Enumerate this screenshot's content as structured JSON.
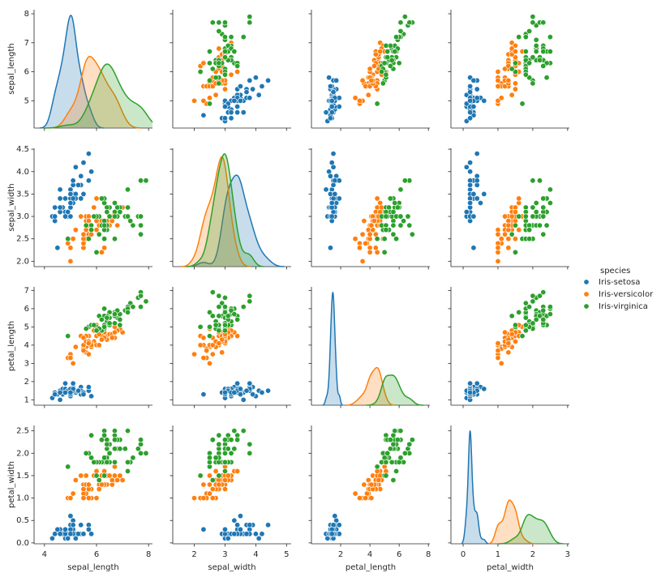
{
  "chart_data": {
    "type": "pairplot",
    "legend_title": "species",
    "variables": [
      {
        "label": "sepal_length",
        "xlim": [
          3.6,
          8.15
        ],
        "xticks": [
          4,
          6,
          8
        ],
        "ylim": [
          4.06,
          8.14
        ],
        "yticks": [
          5,
          6,
          7,
          8
        ]
      },
      {
        "label": "sepal_width",
        "xlim": [
          1.3,
          5.15
        ],
        "xticks": [
          2,
          3,
          4,
          5
        ],
        "ylim": [
          1.88,
          4.52
        ],
        "yticks": [
          {
            "value": 2,
            "label": "2.0"
          },
          2.5,
          {
            "value": 3,
            "label": "3.0"
          },
          3.5,
          {
            "value": 4,
            "label": "4.0"
          },
          4.5
        ]
      },
      {
        "label": "petal_length",
        "xlim": [
          0,
          8.1
        ],
        "xticks": [
          2,
          4,
          6,
          8
        ],
        "ylim": [
          0.705,
          7.195
        ],
        "yticks": [
          1,
          2,
          3,
          4,
          5,
          6,
          7
        ]
      },
      {
        "label": "petal_width",
        "xlim": [
          -0.35,
          3.05
        ],
        "xticks": [
          0,
          1,
          2,
          3
        ],
        "ylim": [
          -0.02,
          2.62
        ],
        "yticks": [
          {
            "value": 0,
            "label": "0.0"
          },
          0.5,
          {
            "value": 1,
            "label": "1.0"
          },
          1.5,
          {
            "value": 2,
            "label": "2.0"
          },
          2.5
        ]
      }
    ],
    "series": [
      {
        "name": "Iris-setosa",
        "color": "#1f77b4",
        "values": [
          [
            5.1,
            3.5,
            1.4,
            0.2
          ],
          [
            4.9,
            3.0,
            1.4,
            0.2
          ],
          [
            4.7,
            3.2,
            1.3,
            0.2
          ],
          [
            4.6,
            3.1,
            1.5,
            0.2
          ],
          [
            5.0,
            3.6,
            1.4,
            0.2
          ],
          [
            5.4,
            3.9,
            1.7,
            0.4
          ],
          [
            4.6,
            3.4,
            1.4,
            0.3
          ],
          [
            5.0,
            3.4,
            1.5,
            0.2
          ],
          [
            4.4,
            2.9,
            1.4,
            0.2
          ],
          [
            4.9,
            3.1,
            1.5,
            0.1
          ],
          [
            5.4,
            3.7,
            1.5,
            0.2
          ],
          [
            4.8,
            3.4,
            1.6,
            0.2
          ],
          [
            4.8,
            3.0,
            1.4,
            0.1
          ],
          [
            4.3,
            3.0,
            1.1,
            0.1
          ],
          [
            5.8,
            4.0,
            1.2,
            0.2
          ],
          [
            5.7,
            4.4,
            1.5,
            0.4
          ],
          [
            5.4,
            3.9,
            1.3,
            0.4
          ],
          [
            5.1,
            3.5,
            1.4,
            0.3
          ],
          [
            5.7,
            3.8,
            1.7,
            0.3
          ],
          [
            5.1,
            3.8,
            1.5,
            0.3
          ],
          [
            5.4,
            3.4,
            1.7,
            0.2
          ],
          [
            5.1,
            3.7,
            1.5,
            0.4
          ],
          [
            4.6,
            3.6,
            1.0,
            0.2
          ],
          [
            5.1,
            3.3,
            1.7,
            0.5
          ],
          [
            4.8,
            3.4,
            1.9,
            0.2
          ],
          [
            5.0,
            3.0,
            1.6,
            0.2
          ],
          [
            5.0,
            3.4,
            1.6,
            0.4
          ],
          [
            5.2,
            3.5,
            1.5,
            0.2
          ],
          [
            5.2,
            3.4,
            1.4,
            0.2
          ],
          [
            4.7,
            3.2,
            1.6,
            0.2
          ],
          [
            4.8,
            3.1,
            1.6,
            0.2
          ],
          [
            5.4,
            3.4,
            1.5,
            0.4
          ],
          [
            5.2,
            4.1,
            1.5,
            0.1
          ],
          [
            5.5,
            4.2,
            1.4,
            0.2
          ],
          [
            4.9,
            3.1,
            1.5,
            0.1
          ],
          [
            5.0,
            3.2,
            1.2,
            0.2
          ],
          [
            5.5,
            3.5,
            1.3,
            0.2
          ],
          [
            4.9,
            3.1,
            1.5,
            0.1
          ],
          [
            4.4,
            3.0,
            1.3,
            0.2
          ],
          [
            5.1,
            3.4,
            1.5,
            0.2
          ],
          [
            5.0,
            3.5,
            1.3,
            0.3
          ],
          [
            4.5,
            2.3,
            1.3,
            0.3
          ],
          [
            4.4,
            3.2,
            1.3,
            0.2
          ],
          [
            5.0,
            3.5,
            1.6,
            0.6
          ],
          [
            5.1,
            3.8,
            1.9,
            0.4
          ],
          [
            4.8,
            3.0,
            1.4,
            0.3
          ],
          [
            5.1,
            3.8,
            1.6,
            0.2
          ],
          [
            4.6,
            3.2,
            1.4,
            0.2
          ],
          [
            5.3,
            3.7,
            1.5,
            0.2
          ],
          [
            5.0,
            3.3,
            1.4,
            0.2
          ]
        ]
      },
      {
        "name": "Iris-versicolor",
        "color": "#ff7f0e",
        "values": [
          [
            7.0,
            3.2,
            4.7,
            1.4
          ],
          [
            6.4,
            3.2,
            4.5,
            1.5
          ],
          [
            6.9,
            3.1,
            4.9,
            1.5
          ],
          [
            5.5,
            2.3,
            4.0,
            1.3
          ],
          [
            6.5,
            2.8,
            4.6,
            1.5
          ],
          [
            5.7,
            2.8,
            4.5,
            1.3
          ],
          [
            6.3,
            3.3,
            4.7,
            1.6
          ],
          [
            4.9,
            2.4,
            3.3,
            1.0
          ],
          [
            6.6,
            2.9,
            4.6,
            1.3
          ],
          [
            5.2,
            2.7,
            3.9,
            1.4
          ],
          [
            5.0,
            2.0,
            3.5,
            1.0
          ],
          [
            5.9,
            3.0,
            4.2,
            1.5
          ],
          [
            6.0,
            2.2,
            4.0,
            1.0
          ],
          [
            6.1,
            2.9,
            4.7,
            1.4
          ],
          [
            5.6,
            2.9,
            3.6,
            1.3
          ],
          [
            6.7,
            3.1,
            4.4,
            1.4
          ],
          [
            5.6,
            3.0,
            4.5,
            1.5
          ],
          [
            5.8,
            2.7,
            4.1,
            1.0
          ],
          [
            6.2,
            2.2,
            4.5,
            1.5
          ],
          [
            5.6,
            2.5,
            3.9,
            1.1
          ],
          [
            5.9,
            3.2,
            4.8,
            1.8
          ],
          [
            6.1,
            2.8,
            4.0,
            1.3
          ],
          [
            6.3,
            2.5,
            4.9,
            1.5
          ],
          [
            6.1,
            2.8,
            4.7,
            1.2
          ],
          [
            6.4,
            2.9,
            4.3,
            1.3
          ],
          [
            6.6,
            3.0,
            4.4,
            1.4
          ],
          [
            6.8,
            2.8,
            4.8,
            1.4
          ],
          [
            6.7,
            3.0,
            5.0,
            1.7
          ],
          [
            6.0,
            2.9,
            4.5,
            1.5
          ],
          [
            5.7,
            2.6,
            3.5,
            1.0
          ],
          [
            5.5,
            2.4,
            3.8,
            1.1
          ],
          [
            5.5,
            2.4,
            3.7,
            1.0
          ],
          [
            5.8,
            2.7,
            3.9,
            1.2
          ],
          [
            6.0,
            2.7,
            5.1,
            1.6
          ],
          [
            5.4,
            3.0,
            4.5,
            1.5
          ],
          [
            6.0,
            3.4,
            4.5,
            1.6
          ],
          [
            6.7,
            3.1,
            4.7,
            1.5
          ],
          [
            6.3,
            2.3,
            4.4,
            1.3
          ],
          [
            5.6,
            3.0,
            4.1,
            1.3
          ],
          [
            5.5,
            2.5,
            4.0,
            1.3
          ],
          [
            5.5,
            2.6,
            4.4,
            1.2
          ],
          [
            6.1,
            3.0,
            4.6,
            1.4
          ],
          [
            5.8,
            2.6,
            4.0,
            1.2
          ],
          [
            5.0,
            2.3,
            3.3,
            1.0
          ],
          [
            5.6,
            2.7,
            4.2,
            1.3
          ],
          [
            5.7,
            3.0,
            4.2,
            1.2
          ],
          [
            5.7,
            2.9,
            4.2,
            1.3
          ],
          [
            6.2,
            2.9,
            4.3,
            1.3
          ],
          [
            5.1,
            2.5,
            3.0,
            1.1
          ],
          [
            5.7,
            2.8,
            4.1,
            1.3
          ]
        ]
      },
      {
        "name": "Iris-virginica",
        "color": "#2ca02c",
        "values": [
          [
            6.3,
            3.3,
            6.0,
            2.5
          ],
          [
            5.8,
            2.7,
            5.1,
            1.9
          ],
          [
            7.1,
            3.0,
            5.9,
            2.1
          ],
          [
            6.3,
            2.9,
            5.6,
            1.8
          ],
          [
            6.5,
            3.0,
            5.8,
            2.2
          ],
          [
            7.6,
            3.0,
            6.6,
            2.1
          ],
          [
            4.9,
            2.5,
            4.5,
            1.7
          ],
          [
            7.3,
            2.9,
            6.3,
            1.8
          ],
          [
            6.7,
            2.5,
            5.8,
            1.8
          ],
          [
            7.2,
            3.6,
            6.1,
            2.5
          ],
          [
            6.5,
            3.2,
            5.1,
            2.0
          ],
          [
            6.4,
            2.7,
            5.3,
            1.9
          ],
          [
            6.8,
            3.0,
            5.5,
            2.1
          ],
          [
            5.7,
            2.5,
            5.0,
            2.0
          ],
          [
            5.8,
            2.8,
            5.1,
            2.4
          ],
          [
            6.4,
            3.2,
            5.3,
            2.3
          ],
          [
            6.5,
            3.0,
            5.5,
            1.8
          ],
          [
            7.7,
            3.8,
            6.7,
            2.2
          ],
          [
            7.7,
            2.6,
            6.9,
            2.3
          ],
          [
            6.0,
            2.2,
            5.0,
            1.5
          ],
          [
            6.9,
            3.2,
            5.7,
            2.3
          ],
          [
            5.6,
            2.8,
            4.9,
            2.0
          ],
          [
            7.7,
            2.8,
            6.7,
            2.0
          ],
          [
            6.3,
            2.7,
            4.9,
            1.8
          ],
          [
            6.7,
            3.3,
            5.7,
            2.1
          ],
          [
            7.2,
            3.2,
            6.0,
            1.8
          ],
          [
            6.2,
            2.8,
            4.8,
            1.8
          ],
          [
            6.1,
            3.0,
            4.9,
            1.8
          ],
          [
            6.4,
            2.8,
            5.6,
            2.1
          ],
          [
            7.2,
            3.0,
            5.8,
            1.6
          ],
          [
            7.4,
            2.8,
            6.1,
            1.9
          ],
          [
            7.9,
            3.8,
            6.4,
            2.0
          ],
          [
            6.4,
            2.8,
            5.6,
            2.2
          ],
          [
            6.3,
            2.8,
            5.1,
            1.5
          ],
          [
            6.1,
            2.6,
            5.6,
            1.4
          ],
          [
            7.7,
            3.0,
            6.1,
            2.3
          ],
          [
            6.3,
            3.4,
            5.6,
            2.4
          ],
          [
            6.4,
            3.1,
            5.5,
            1.8
          ],
          [
            6.0,
            3.0,
            4.8,
            1.8
          ],
          [
            6.9,
            3.1,
            5.4,
            2.1
          ],
          [
            6.7,
            3.1,
            5.6,
            2.4
          ],
          [
            6.9,
            3.1,
            5.1,
            2.3
          ],
          [
            5.8,
            2.7,
            5.1,
            1.9
          ],
          [
            6.8,
            3.2,
            5.9,
            2.3
          ],
          [
            6.7,
            3.3,
            5.7,
            2.5
          ],
          [
            6.7,
            3.0,
            5.2,
            2.3
          ],
          [
            6.3,
            2.5,
            5.0,
            1.9
          ],
          [
            6.5,
            3.0,
            5.2,
            2.0
          ],
          [
            6.2,
            3.4,
            5.4,
            2.3
          ],
          [
            5.9,
            3.0,
            5.1,
            1.8
          ]
        ]
      }
    ]
  }
}
